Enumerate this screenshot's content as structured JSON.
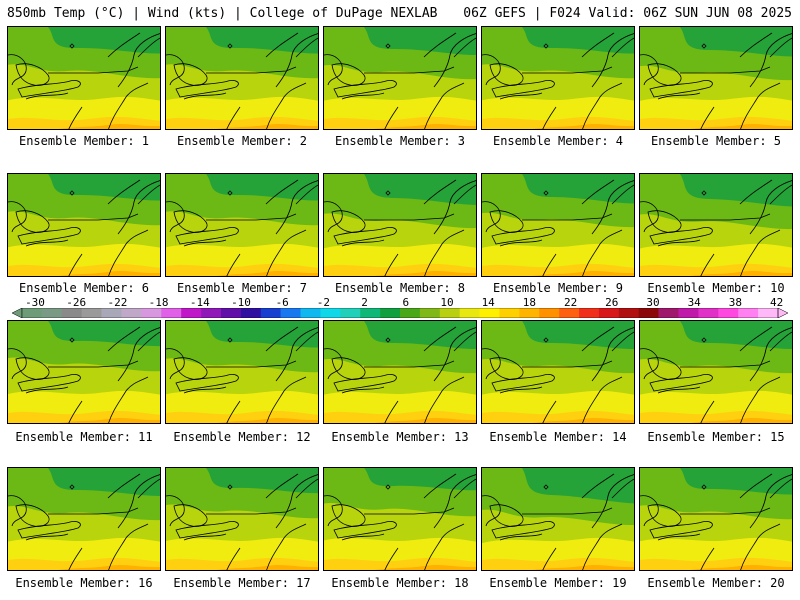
{
  "header": {
    "left": "850mb Temp (°C) | Wind (kts) | College of DuPage NEXLAB",
    "right": "06Z GEFS | F024 Valid: 06Z SUN JUN 08 2025"
  },
  "members": [
    {
      "label": "Ensemble Member: 1",
      "north_intensity": 0.55
    },
    {
      "label": "Ensemble Member: 2",
      "north_intensity": 0.55
    },
    {
      "label": "Ensemble Member: 3",
      "north_intensity": 0.6
    },
    {
      "label": "Ensemble Member: 4",
      "north_intensity": 0.55
    },
    {
      "label": "Ensemble Member: 5",
      "north_intensity": 0.65
    },
    {
      "label": "Ensemble Member: 6",
      "north_intensity": 0.55
    },
    {
      "label": "Ensemble Member: 7",
      "north_intensity": 0.55
    },
    {
      "label": "Ensemble Member: 8",
      "north_intensity": 0.7
    },
    {
      "label": "Ensemble Member: 9",
      "north_intensity": 0.65
    },
    {
      "label": "Ensemble Member: 10",
      "north_intensity": 0.75
    },
    {
      "label": "Ensemble Member: 11",
      "north_intensity": 0.5
    },
    {
      "label": "Ensemble Member: 12",
      "north_intensity": 0.55
    },
    {
      "label": "Ensemble Member: 13",
      "north_intensity": 0.6
    },
    {
      "label": "Ensemble Member: 14",
      "north_intensity": 0.6
    },
    {
      "label": "Ensemble Member: 15",
      "north_intensity": 0.6
    },
    {
      "label": "Ensemble Member: 16",
      "north_intensity": 0.6
    },
    {
      "label": "Ensemble Member: 17",
      "north_intensity": 0.5
    },
    {
      "label": "Ensemble Member: 18",
      "north_intensity": 0.4
    },
    {
      "label": "Ensemble Member: 19",
      "north_intensity": 0.85
    },
    {
      "label": "Ensemble Member: 20",
      "north_intensity": 0.55
    }
  ],
  "colorbar": {
    "tick_labels": [
      "-30",
      "-26",
      "-22",
      "-18",
      "-14",
      "-10",
      "-6",
      "-2",
      "2",
      "6",
      "10",
      "14",
      "18",
      "22",
      "26",
      "30",
      "34",
      "38",
      "42"
    ],
    "colors": [
      "#6e9c78",
      "#7a9a86",
      "#8a8a8a",
      "#9a9a9a",
      "#a8a8b8",
      "#c0a8c8",
      "#d898e0",
      "#e060e8",
      "#c018c8",
      "#9018b8",
      "#6010a8",
      "#3010a0",
      "#1840d0",
      "#1878f0",
      "#10b8f0",
      "#10d8e8",
      "#20d0b8",
      "#10b878",
      "#10a040",
      "#48a818",
      "#80b818",
      "#b8d010",
      "#e8e810",
      "#fff000",
      "#ffd000",
      "#ffb400",
      "#ff9000",
      "#ff6010",
      "#f03018",
      "#d81818",
      "#b01010",
      "#8c0808",
      "#a0186c",
      "#c018a8",
      "#e030c8",
      "#ff48e0",
      "#ff80f0",
      "#ffb8f8"
    ]
  },
  "colors": {
    "cold": "#1ea03c",
    "mid": "#6cb814",
    "mild": "#b8d40c",
    "warm": "#f0ec10",
    "hot": "#ffd010",
    "hotter": "#ffb000"
  }
}
